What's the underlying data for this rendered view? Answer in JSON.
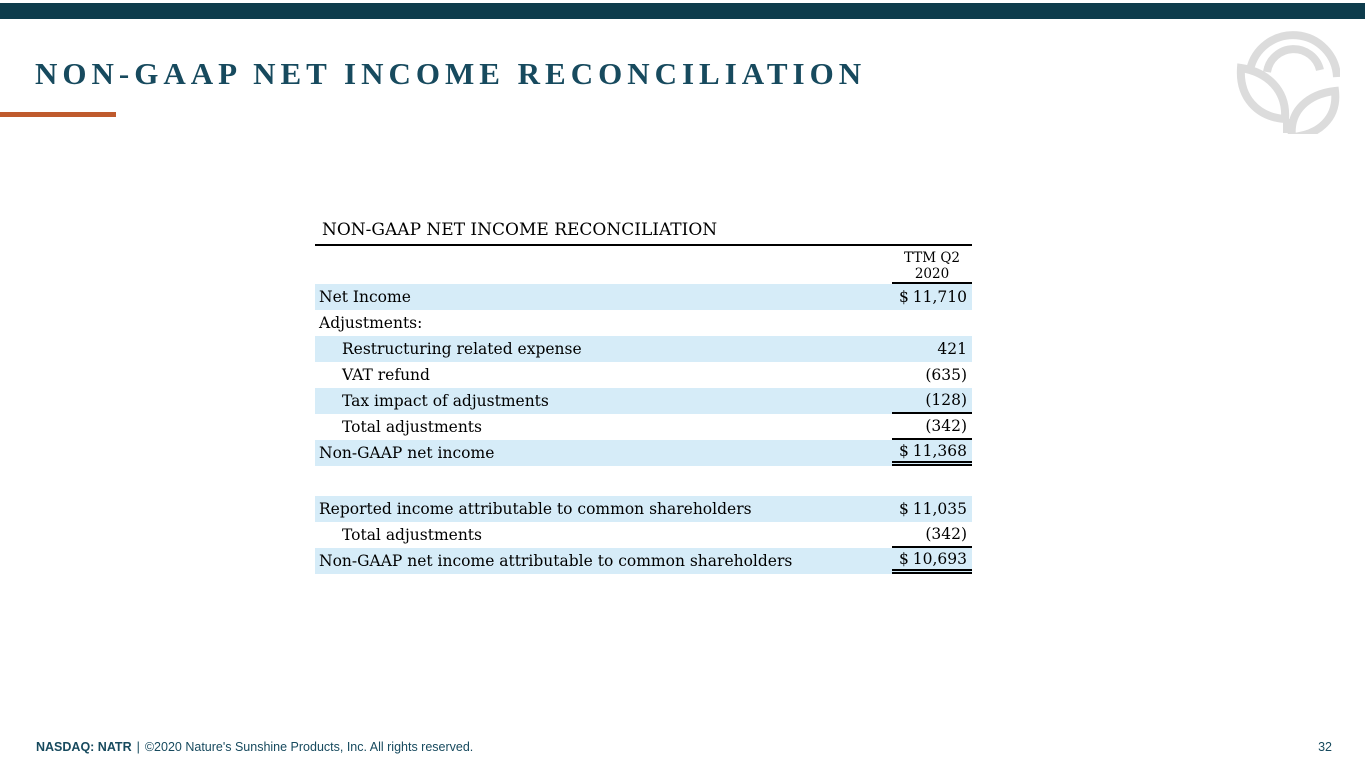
{
  "slide": {
    "title": "NON-GAAP NET INCOME RECONCILIATION",
    "page_number": "32",
    "footer": {
      "ticker": "NASDAQ: NATR",
      "separator": "|",
      "copyright": "©2020 Nature's Sunshine Products, Inc. All rights reserved."
    }
  },
  "logo": {
    "name": "natures-sunshine-leaf-sun-logo"
  },
  "colors": {
    "top_bar": "#0e3c4c",
    "title_text": "#174a5e",
    "accent_rule": "#bf5a2d",
    "row_highlight": "#d6ecf8",
    "table_text": "#000000",
    "footer_text": "#174a5e",
    "logo_gray": "#dcdcdc"
  },
  "table": {
    "title": "NON-GAAP NET INCOME RECONCILIATION",
    "column_header": {
      "line1": "TTM Q2",
      "line2": "2020"
    },
    "rows": [
      {
        "label": "Net Income",
        "indent": false,
        "dollar": "$",
        "value": "11,710",
        "highlight": true,
        "border": "none"
      },
      {
        "label": "Adjustments:",
        "indent": false,
        "dollar": "",
        "value": "",
        "highlight": false,
        "border": "none"
      },
      {
        "label": "Restructuring related expense",
        "indent": true,
        "dollar": "",
        "value": "421",
        "highlight": true,
        "border": "none"
      },
      {
        "label": "VAT refund",
        "indent": true,
        "dollar": "",
        "value": "(635)",
        "highlight": false,
        "border": "none"
      },
      {
        "label": "Tax impact of adjustments",
        "indent": true,
        "dollar": "",
        "value": "(128)",
        "highlight": true,
        "border": "single"
      },
      {
        "label": "Total adjustments",
        "indent": true,
        "dollar": "",
        "value": "(342)",
        "highlight": false,
        "border": "single"
      },
      {
        "label": "Non-GAAP net income",
        "indent": false,
        "dollar": "$",
        "value": "11,368",
        "highlight": true,
        "border": "double"
      },
      {
        "spacer": true
      },
      {
        "label": "Reported income attributable to common shareholders",
        "indent": false,
        "dollar": "$",
        "value": "11,035",
        "highlight": true,
        "border": "none"
      },
      {
        "label": "Total adjustments",
        "indent": true,
        "dollar": "",
        "value": "(342)",
        "highlight": false,
        "border": "single"
      },
      {
        "label": "Non-GAAP net income attributable to common shareholders",
        "indent": false,
        "dollar": "$",
        "value": "10,693",
        "highlight": true,
        "border": "double"
      }
    ]
  }
}
